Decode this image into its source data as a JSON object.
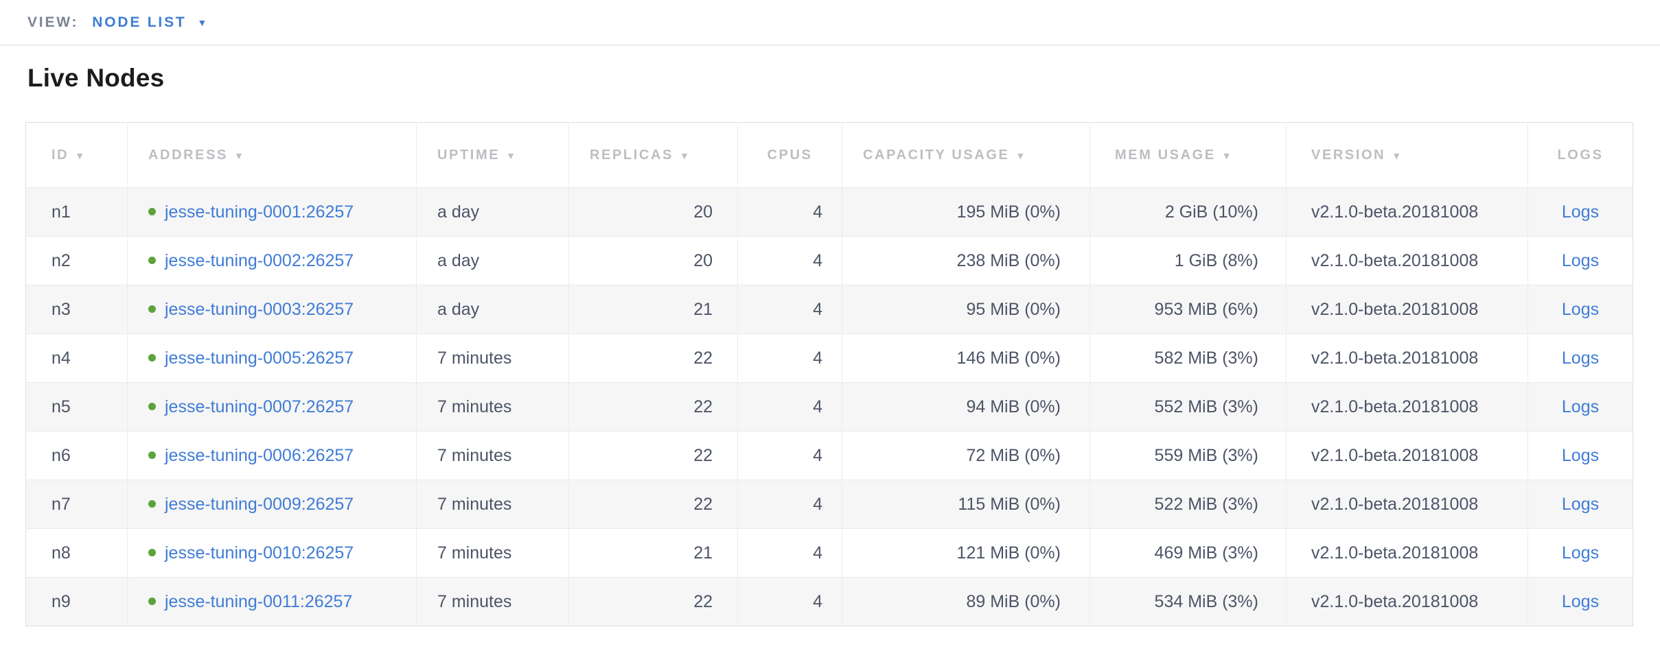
{
  "view_bar": {
    "label": "VIEW:",
    "selected": "NODE LIST",
    "caret_glyph": "▼"
  },
  "page": {
    "title": "Live Nodes"
  },
  "colors": {
    "accent_blue": "#3f7cd6",
    "status_green": "#5ca33c",
    "header_text": "#bcbec2",
    "cell_text": "#4c5466",
    "alt_row_background": "#f6f6f6"
  },
  "table": {
    "sort_arrow_glyph": "▼",
    "columns": [
      {
        "key": "id",
        "label": "ID",
        "sortable": true,
        "cell_type": "text"
      },
      {
        "key": "address",
        "label": "ADDRESS",
        "sortable": true,
        "cell_type": "node-link"
      },
      {
        "key": "uptime",
        "label": "UPTIME",
        "sortable": true,
        "cell_type": "text"
      },
      {
        "key": "replicas",
        "label": "REPLICAS",
        "sortable": true,
        "cell_type": "text"
      },
      {
        "key": "cpus",
        "label": "CPUS",
        "sortable": false,
        "cell_type": "text"
      },
      {
        "key": "capacity",
        "label": "CAPACITY USAGE",
        "sortable": true,
        "cell_type": "text"
      },
      {
        "key": "mem",
        "label": "MEM USAGE",
        "sortable": true,
        "cell_type": "text"
      },
      {
        "key": "version",
        "label": "VERSION",
        "sortable": true,
        "cell_type": "text"
      },
      {
        "key": "logs",
        "label": "LOGS",
        "sortable": false,
        "cell_type": "link"
      }
    ],
    "rows": [
      {
        "id": "n1",
        "address": "jesse-tuning-0001:26257",
        "status": "live",
        "uptime": "a day",
        "replicas": "20",
        "cpus": "4",
        "capacity": "195 MiB (0%)",
        "mem": "2 GiB (10%)",
        "version": "v2.1.0-beta.20181008",
        "logs": "Logs"
      },
      {
        "id": "n2",
        "address": "jesse-tuning-0002:26257",
        "status": "live",
        "uptime": "a day",
        "replicas": "20",
        "cpus": "4",
        "capacity": "238 MiB (0%)",
        "mem": "1 GiB (8%)",
        "version": "v2.1.0-beta.20181008",
        "logs": "Logs"
      },
      {
        "id": "n3",
        "address": "jesse-tuning-0003:26257",
        "status": "live",
        "uptime": "a day",
        "replicas": "21",
        "cpus": "4",
        "capacity": "95 MiB (0%)",
        "mem": "953 MiB (6%)",
        "version": "v2.1.0-beta.20181008",
        "logs": "Logs"
      },
      {
        "id": "n4",
        "address": "jesse-tuning-0005:26257",
        "status": "live",
        "uptime": "7 minutes",
        "replicas": "22",
        "cpus": "4",
        "capacity": "146 MiB (0%)",
        "mem": "582 MiB (3%)",
        "version": "v2.1.0-beta.20181008",
        "logs": "Logs"
      },
      {
        "id": "n5",
        "address": "jesse-tuning-0007:26257",
        "status": "live",
        "uptime": "7 minutes",
        "replicas": "22",
        "cpus": "4",
        "capacity": "94 MiB (0%)",
        "mem": "552 MiB (3%)",
        "version": "v2.1.0-beta.20181008",
        "logs": "Logs"
      },
      {
        "id": "n6",
        "address": "jesse-tuning-0006:26257",
        "status": "live",
        "uptime": "7 minutes",
        "replicas": "22",
        "cpus": "4",
        "capacity": "72 MiB (0%)",
        "mem": "559 MiB (3%)",
        "version": "v2.1.0-beta.20181008",
        "logs": "Logs"
      },
      {
        "id": "n7",
        "address": "jesse-tuning-0009:26257",
        "status": "live",
        "uptime": "7 minutes",
        "replicas": "22",
        "cpus": "4",
        "capacity": "115 MiB (0%)",
        "mem": "522 MiB (3%)",
        "version": "v2.1.0-beta.20181008",
        "logs": "Logs"
      },
      {
        "id": "n8",
        "address": "jesse-tuning-0010:26257",
        "status": "live",
        "uptime": "7 minutes",
        "replicas": "21",
        "cpus": "4",
        "capacity": "121 MiB (0%)",
        "mem": "469 MiB (3%)",
        "version": "v2.1.0-beta.20181008",
        "logs": "Logs"
      },
      {
        "id": "n9",
        "address": "jesse-tuning-0011:26257",
        "status": "live",
        "uptime": "7 minutes",
        "replicas": "22",
        "cpus": "4",
        "capacity": "89 MiB (0%)",
        "mem": "534 MiB (3%)",
        "version": "v2.1.0-beta.20181008",
        "logs": "Logs"
      }
    ]
  }
}
